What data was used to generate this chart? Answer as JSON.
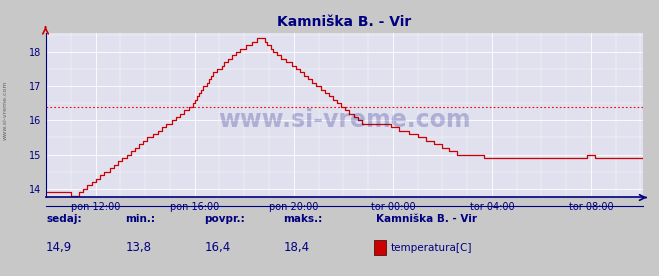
{
  "title": "Kamniška B. - Vir",
  "bg_color": "#c8c8c8",
  "plot_bg_color": "#e0e0ee",
  "grid_color": "#ffffff",
  "line_color": "#cc0000",
  "avg_line_color": "#ff0000",
  "avg_value": 16.4,
  "min_value": 13.8,
  "max_value": 18.4,
  "current_value": 14.9,
  "ylim_low": 13.75,
  "ylim_high": 18.55,
  "yticks": [
    14,
    15,
    16,
    17,
    18
  ],
  "tick_color": "#000080",
  "title_color": "#000080",
  "watermark": "www.si-vreme.com",
  "watermark_color": "#000080",
  "xtick_labels": [
    "pon 12:00",
    "pon 16:00",
    "pon 20:00",
    "tor 00:00",
    "tor 04:00",
    "tor 08:00"
  ],
  "xtick_positions": [
    24,
    72,
    120,
    168,
    216,
    264
  ],
  "n_points": 288,
  "footer_labels": [
    "sedaj:",
    "min.:",
    "povpr.:",
    "maks.:"
  ],
  "footer_values": [
    "14,9",
    "13,8",
    "16,4",
    "18,4"
  ],
  "legend_station": "Kamniška B. - Vir",
  "legend_label": "temperatura[C]",
  "legend_color": "#cc0000",
  "temp_data": [
    13.9,
    13.9,
    13.9,
    13.9,
    13.9,
    13.9,
    13.9,
    13.9,
    13.9,
    13.9,
    13.9,
    13.9,
    13.8,
    13.8,
    13.8,
    13.8,
    13.9,
    13.9,
    14.0,
    14.0,
    14.1,
    14.1,
    14.2,
    14.2,
    14.3,
    14.3,
    14.4,
    14.4,
    14.5,
    14.5,
    14.5,
    14.6,
    14.6,
    14.7,
    14.7,
    14.8,
    14.8,
    14.9,
    14.9,
    15.0,
    15.0,
    15.1,
    15.1,
    15.2,
    15.2,
    15.3,
    15.3,
    15.4,
    15.4,
    15.5,
    15.5,
    15.5,
    15.6,
    15.6,
    15.7,
    15.7,
    15.8,
    15.8,
    15.9,
    15.9,
    15.9,
    16.0,
    16.0,
    16.1,
    16.1,
    16.2,
    16.2,
    16.3,
    16.3,
    16.4,
    16.4,
    16.5,
    16.6,
    16.7,
    16.8,
    16.9,
    17.0,
    17.0,
    17.1,
    17.2,
    17.3,
    17.4,
    17.4,
    17.5,
    17.5,
    17.6,
    17.7,
    17.7,
    17.8,
    17.8,
    17.9,
    17.9,
    18.0,
    18.0,
    18.1,
    18.1,
    18.1,
    18.2,
    18.2,
    18.2,
    18.3,
    18.3,
    18.4,
    18.4,
    18.4,
    18.4,
    18.3,
    18.2,
    18.2,
    18.1,
    18.0,
    18.0,
    17.9,
    17.9,
    17.8,
    17.8,
    17.7,
    17.7,
    17.7,
    17.6,
    17.6,
    17.5,
    17.5,
    17.4,
    17.4,
    17.3,
    17.3,
    17.2,
    17.2,
    17.1,
    17.1,
    17.0,
    17.0,
    16.9,
    16.9,
    16.8,
    16.8,
    16.7,
    16.7,
    16.6,
    16.6,
    16.5,
    16.5,
    16.4,
    16.4,
    16.3,
    16.3,
    16.2,
    16.2,
    16.1,
    16.1,
    16.0,
    16.0,
    15.9,
    15.9,
    15.9,
    15.9,
    15.9,
    15.9,
    15.9,
    15.9,
    15.9,
    15.9,
    15.9,
    15.9,
    15.9,
    15.9,
    15.8,
    15.8,
    15.8,
    15.8,
    15.7,
    15.7,
    15.7,
    15.7,
    15.7,
    15.6,
    15.6,
    15.6,
    15.6,
    15.5,
    15.5,
    15.5,
    15.5,
    15.4,
    15.4,
    15.4,
    15.4,
    15.3,
    15.3,
    15.3,
    15.3,
    15.2,
    15.2,
    15.2,
    15.1,
    15.1,
    15.1,
    15.1,
    15.0,
    15.0,
    15.0,
    15.0,
    15.0,
    15.0,
    15.0,
    15.0,
    15.0,
    15.0,
    15.0,
    15.0,
    15.0,
    14.9,
    14.9,
    14.9,
    14.9,
    14.9,
    14.9,
    14.9,
    14.9,
    14.9,
    14.9,
    14.9,
    14.9,
    14.9,
    14.9,
    14.9,
    14.9,
    14.9,
    14.9,
    14.9,
    14.9,
    14.9,
    14.9,
    14.9,
    14.9,
    14.9,
    14.9,
    14.9,
    14.9,
    14.9,
    14.9,
    14.9,
    14.9,
    14.9,
    14.9,
    14.9,
    14.9,
    14.9,
    14.9,
    14.9,
    14.9,
    14.9,
    14.9,
    14.9,
    14.9,
    14.9,
    14.9,
    14.9,
    14.9,
    14.9,
    14.9,
    15.0,
    15.0,
    15.0,
    15.0,
    14.9,
    14.9,
    14.9,
    14.9,
    14.9,
    14.9,
    14.9,
    14.9,
    14.9,
    14.9,
    14.9,
    14.9,
    14.9,
    14.9,
    14.9,
    14.9,
    14.9,
    14.9,
    14.9,
    14.9,
    14.9,
    14.9,
    14.9,
    14.9
  ]
}
